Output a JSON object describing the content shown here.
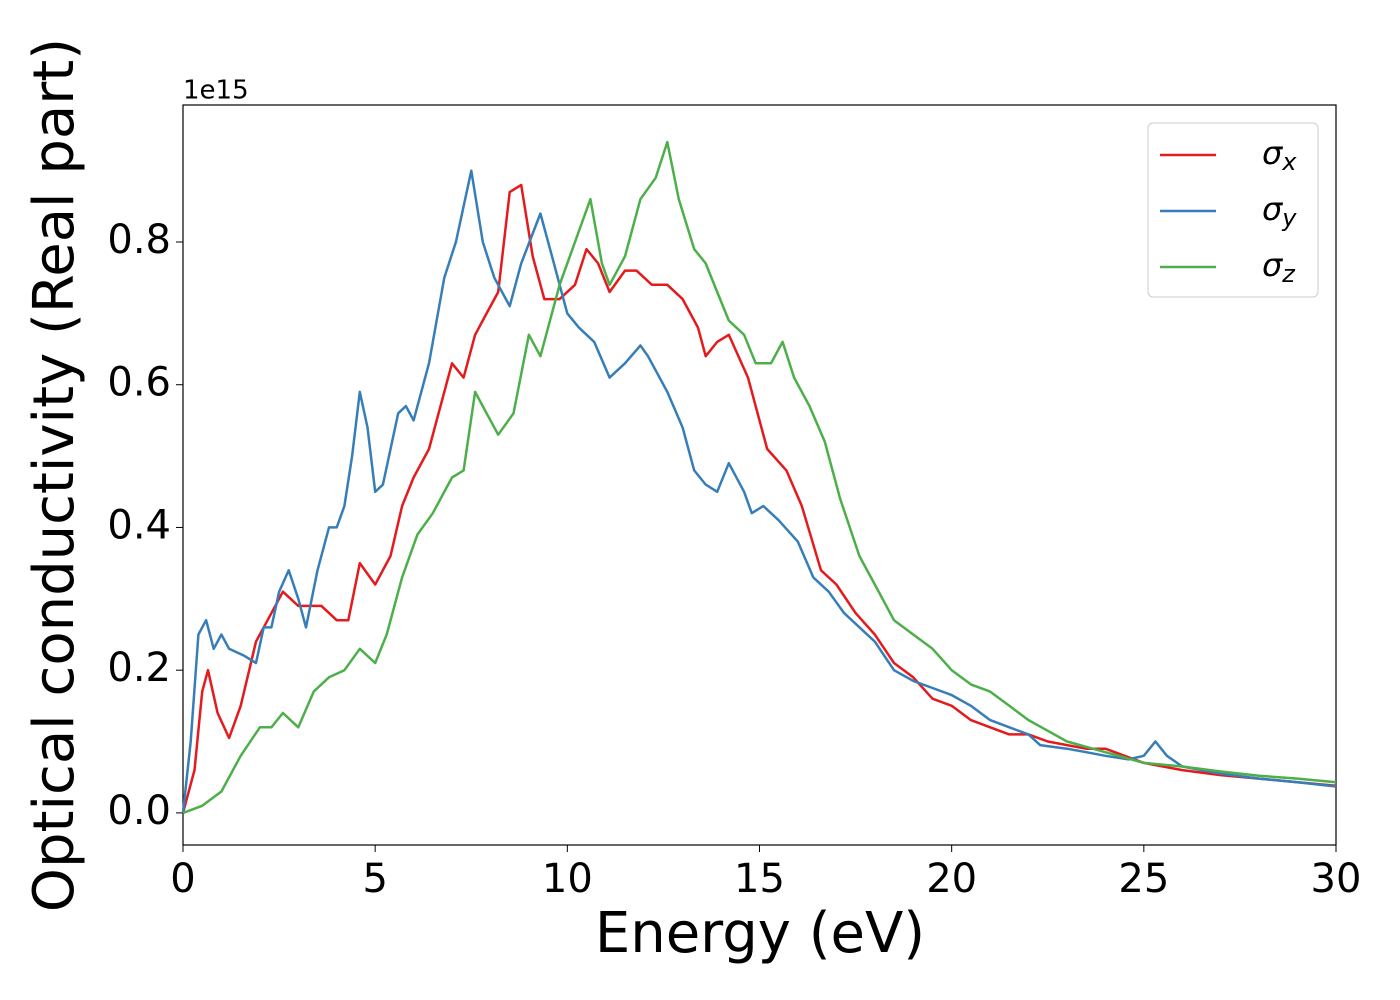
{
  "chart_data": {
    "type": "line",
    "xlabel": "Energy (eV)",
    "ylabel": "Optical conductivity (Real part)",
    "y_offset_label": "1e15",
    "xlim": [
      0,
      30
    ],
    "xticks": [
      0,
      5,
      10,
      15,
      20,
      25,
      30
    ],
    "ylim": [
      -0.045,
      0.992
    ],
    "yticks": [
      {
        "value": 0,
        "label": "0.0"
      },
      0.2,
      0.4,
      0.6,
      0.8
    ],
    "legend": "upper right",
    "series": [
      {
        "name": "σx",
        "color": "#e41a1c",
        "x": [
          0,
          0.3,
          0.5,
          0.65,
          0.9,
          1.2,
          1.5,
          1.9,
          2.2,
          2.6,
          3.0,
          3.3,
          3.6,
          4.0,
          4.3,
          4.6,
          5.0,
          5.4,
          5.7,
          6.0,
          6.4,
          6.8,
          7.0,
          7.3,
          7.6,
          7.9,
          8.2,
          8.5,
          8.8,
          9.1,
          9.4,
          9.8,
          10.2,
          10.5,
          10.8,
          11.1,
          11.5,
          11.8,
          12.2,
          12.6,
          13.0,
          13.4,
          13.6,
          13.9,
          14.2,
          14.7,
          15.2,
          15.7,
          16.1,
          16.6,
          17.0,
          17.5,
          18.0,
          18.5,
          19.0,
          19.5,
          20.0,
          20.5,
          21.0,
          21.5,
          22.0,
          22.5,
          23,
          23.5,
          24,
          24.5,
          25,
          26,
          27,
          28,
          29,
          30
        ],
        "values": [
          0,
          0.06,
          0.17,
          0.2,
          0.14,
          0.105,
          0.15,
          0.24,
          0.27,
          0.31,
          0.29,
          0.29,
          0.29,
          0.27,
          0.27,
          0.35,
          0.32,
          0.36,
          0.43,
          0.47,
          0.51,
          0.59,
          0.63,
          0.61,
          0.67,
          0.7,
          0.73,
          0.87,
          0.88,
          0.78,
          0.72,
          0.72,
          0.74,
          0.79,
          0.77,
          0.73,
          0.76,
          0.76,
          0.74,
          0.74,
          0.72,
          0.68,
          0.64,
          0.66,
          0.67,
          0.61,
          0.51,
          0.48,
          0.43,
          0.34,
          0.32,
          0.28,
          0.25,
          0.21,
          0.19,
          0.16,
          0.15,
          0.13,
          0.12,
          0.11,
          0.11,
          0.1,
          0.095,
          0.09,
          0.09,
          0.08,
          0.07,
          0.06,
          0.053,
          0.048,
          0.043,
          0.038
        ]
      },
      {
        "name": "σy",
        "color": "#377eb8",
        "x": [
          0,
          0.2,
          0.4,
          0.6,
          0.8,
          1.0,
          1.2,
          1.6,
          1.9,
          2.1,
          2.3,
          2.5,
          2.75,
          3.0,
          3.2,
          3.5,
          3.8,
          4.0,
          4.2,
          4.4,
          4.6,
          4.8,
          5.0,
          5.2,
          5.6,
          5.8,
          6.0,
          6.4,
          6.8,
          7.1,
          7.5,
          7.8,
          8.1,
          8.5,
          8.8,
          9.3,
          9.6,
          10.0,
          10.3,
          10.7,
          11.1,
          11.5,
          11.9,
          12.1,
          12.6,
          13.0,
          13.3,
          13.6,
          13.9,
          14.2,
          14.6,
          14.8,
          15.1,
          15.5,
          16.0,
          16.4,
          16.8,
          17.2,
          18,
          18.5,
          19,
          19.5,
          20,
          20.5,
          21,
          21.5,
          22,
          22.3,
          23,
          23.5,
          24,
          24.6,
          25.0,
          25.3,
          25.6,
          26,
          27,
          28,
          29,
          30
        ],
        "values": [
          0,
          0.1,
          0.25,
          0.27,
          0.23,
          0.25,
          0.23,
          0.22,
          0.21,
          0.26,
          0.26,
          0.31,
          0.34,
          0.3,
          0.26,
          0.34,
          0.4,
          0.4,
          0.43,
          0.5,
          0.59,
          0.54,
          0.45,
          0.46,
          0.56,
          0.57,
          0.55,
          0.63,
          0.75,
          0.8,
          0.9,
          0.8,
          0.75,
          0.71,
          0.77,
          0.84,
          0.78,
          0.7,
          0.68,
          0.66,
          0.61,
          0.63,
          0.655,
          0.64,
          0.59,
          0.54,
          0.48,
          0.46,
          0.45,
          0.49,
          0.45,
          0.42,
          0.43,
          0.41,
          0.38,
          0.33,
          0.31,
          0.28,
          0.24,
          0.2,
          0.185,
          0.175,
          0.165,
          0.15,
          0.13,
          0.12,
          0.11,
          0.095,
          0.09,
          0.085,
          0.08,
          0.075,
          0.08,
          0.1,
          0.08,
          0.065,
          0.055,
          0.048,
          0.043,
          0.037
        ]
      },
      {
        "name": "σz",
        "color": "#4daf4a",
        "x": [
          0,
          0.5,
          1.0,
          1.5,
          2.0,
          2.3,
          2.6,
          3.0,
          3.4,
          3.8,
          4.2,
          4.6,
          5.0,
          5.3,
          5.7,
          6.1,
          6.5,
          7.0,
          7.3,
          7.6,
          7.9,
          8.2,
          8.6,
          9.0,
          9.3,
          9.8,
          10.2,
          10.6,
          10.9,
          11.1,
          11.5,
          11.9,
          12.3,
          12.6,
          12.9,
          13.3,
          13.6,
          13.9,
          14.2,
          14.6,
          14.9,
          15.3,
          15.6,
          15.9,
          16.3,
          16.7,
          17.1,
          17.6,
          18.0,
          18.5,
          19.0,
          19.5,
          20,
          20.5,
          21,
          21.5,
          22,
          22.5,
          23,
          24,
          25,
          26,
          27,
          28,
          29,
          30
        ],
        "values": [
          0,
          0.01,
          0.03,
          0.08,
          0.12,
          0.12,
          0.14,
          0.12,
          0.17,
          0.19,
          0.2,
          0.23,
          0.21,
          0.25,
          0.33,
          0.39,
          0.42,
          0.47,
          0.48,
          0.59,
          0.56,
          0.53,
          0.56,
          0.67,
          0.64,
          0.74,
          0.8,
          0.86,
          0.77,
          0.74,
          0.78,
          0.86,
          0.89,
          0.94,
          0.86,
          0.79,
          0.77,
          0.73,
          0.69,
          0.67,
          0.63,
          0.63,
          0.66,
          0.61,
          0.57,
          0.52,
          0.44,
          0.36,
          0.32,
          0.27,
          0.25,
          0.23,
          0.2,
          0.18,
          0.17,
          0.15,
          0.13,
          0.115,
          0.1,
          0.085,
          0.07,
          0.065,
          0.058,
          0.052,
          0.048,
          0.043
        ]
      }
    ]
  }
}
